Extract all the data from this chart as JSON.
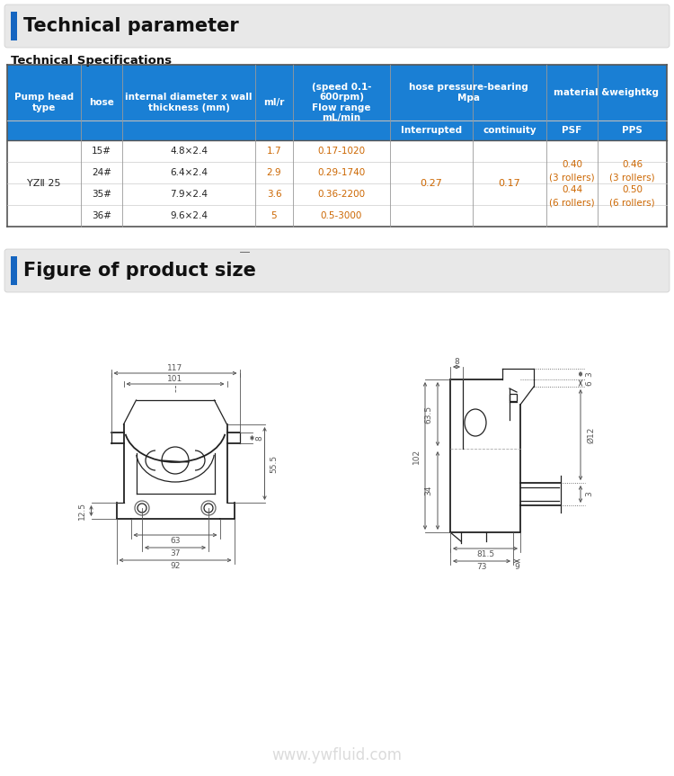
{
  "title1": "Technical parameter",
  "title2": "Technical Specifications",
  "title3": "Figure of product size",
  "header_bg": "#1a7fd4",
  "title_bar_color": "#1565c0",
  "title_bg": "#e8e8e8",
  "bg_color": "#ffffff",
  "data_text_color": "#cc6600",
  "pump_type": "YZⅡ 25",
  "rows": [
    {
      "hose": "15#",
      "diam": "4.8×2.4",
      "mlr": "1.7",
      "flow": "0.17-1020"
    },
    {
      "hose": "24#",
      "diam": "6.4×2.4",
      "mlr": "2.9",
      "flow": "0.29-1740"
    },
    {
      "hose": "35#",
      "diam": "7.9×2.4",
      "mlr": "3.6",
      "flow": "0.36-2200"
    },
    {
      "hose": "36#",
      "diam": "9.6×2.4",
      "mlr": "5",
      "flow": "0.5-3000"
    }
  ],
  "pressure_interrupted": "0.27",
  "pressure_continuity": "0.17",
  "psf": "0.40\n(3 rollers)\n0.44\n(6 rollers)",
  "pps": "0.46\n(3 rollers)\n0.50\n(6 rollers)",
  "watermark": "www.ywfluid.com"
}
